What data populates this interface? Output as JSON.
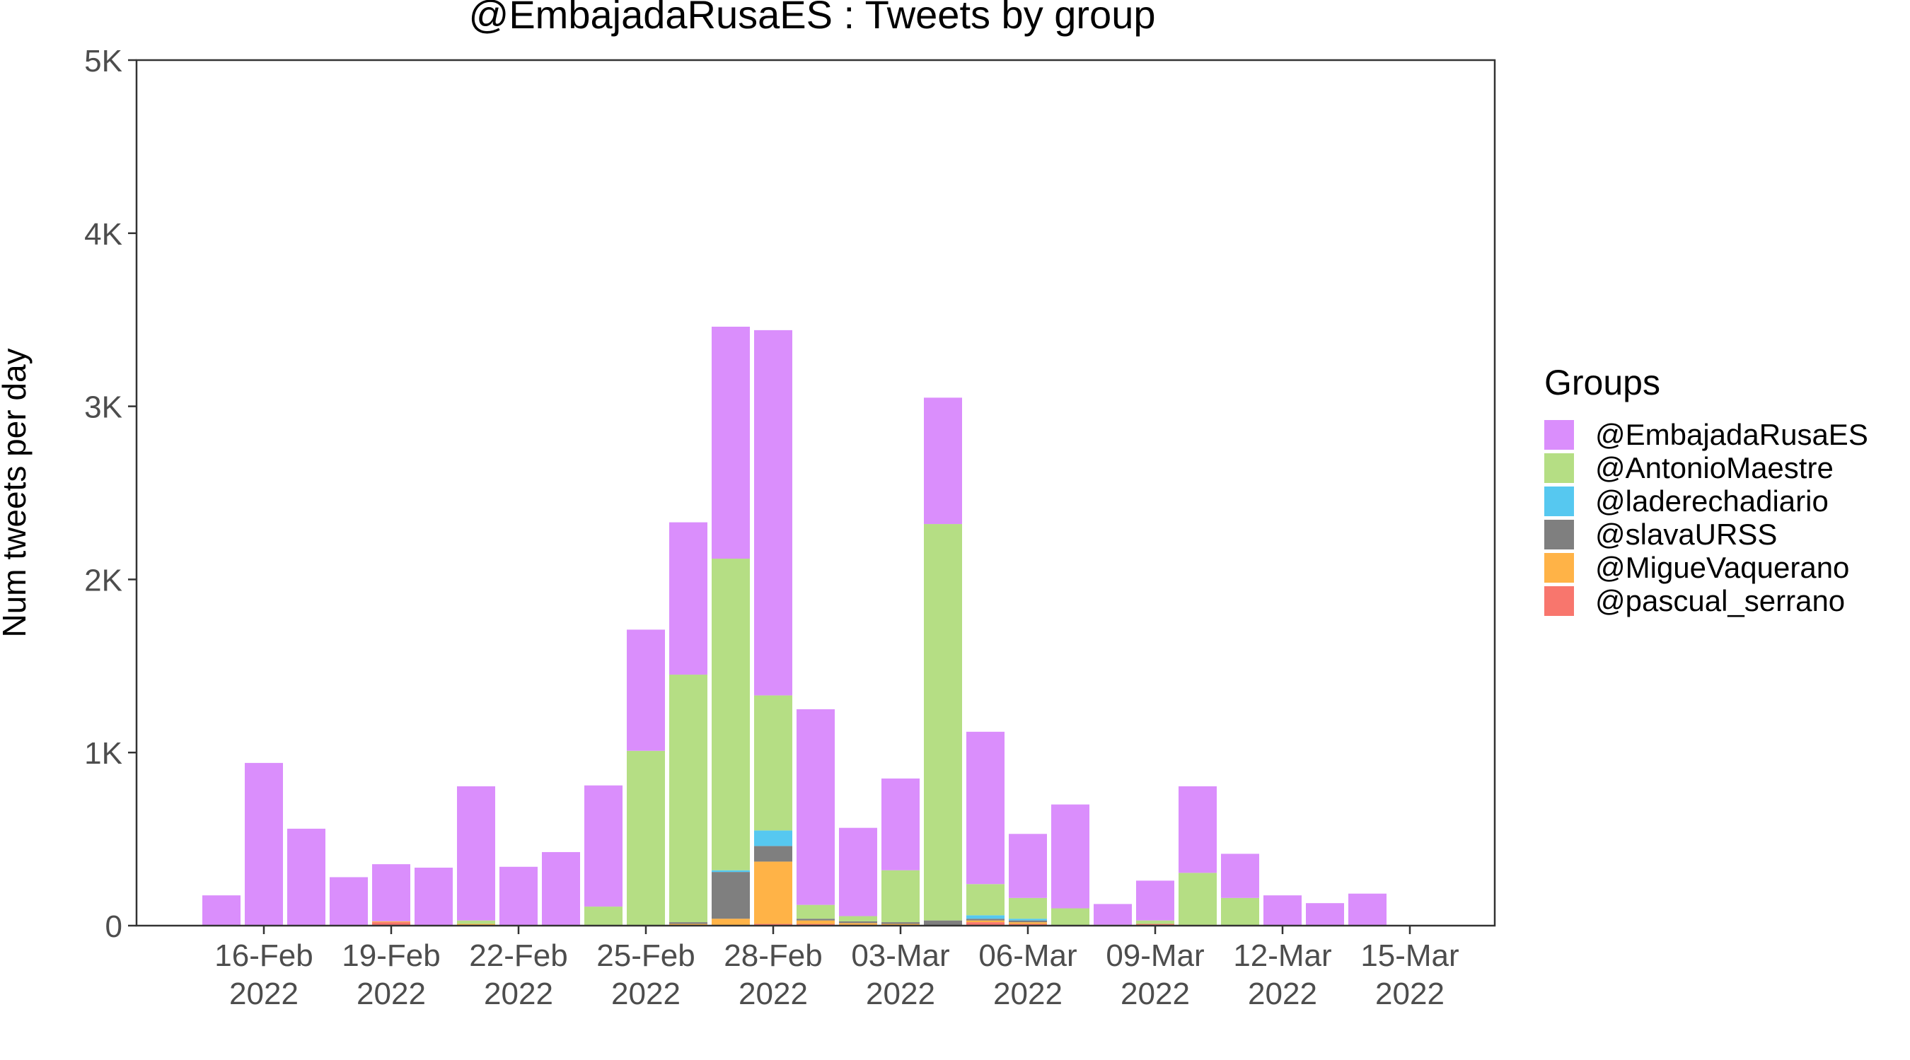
{
  "chart_data": {
    "type": "bar",
    "stacked": true,
    "title": "@EmbajadaRusaES : Tweets by group",
    "ylabel": "Num tweets per day",
    "xlabel": "",
    "ylim": [
      0,
      5000
    ],
    "y_ticks": [
      {
        "value": 0,
        "label": "0"
      },
      {
        "value": 1000,
        "label": "1K"
      },
      {
        "value": 2000,
        "label": "2K"
      },
      {
        "value": 3000,
        "label": "3K"
      },
      {
        "value": 4000,
        "label": "4K"
      },
      {
        "value": 5000,
        "label": "5K"
      }
    ],
    "x_ticks": [
      {
        "date": "2022-02-16",
        "line1": "16-Feb",
        "line2": "2022"
      },
      {
        "date": "2022-02-19",
        "line1": "19-Feb",
        "line2": "2022"
      },
      {
        "date": "2022-02-22",
        "line1": "22-Feb",
        "line2": "2022"
      },
      {
        "date": "2022-02-25",
        "line1": "25-Feb",
        "line2": "2022"
      },
      {
        "date": "2022-02-28",
        "line1": "28-Feb",
        "line2": "2022"
      },
      {
        "date": "2022-03-03",
        "line1": "03-Mar",
        "line2": "2022"
      },
      {
        "date": "2022-03-06",
        "line1": "06-Mar",
        "line2": "2022"
      },
      {
        "date": "2022-03-09",
        "line1": "09-Mar",
        "line2": "2022"
      },
      {
        "date": "2022-03-12",
        "line1": "12-Mar",
        "line2": "2022"
      },
      {
        "date": "2022-03-15",
        "line1": "15-Mar",
        "line2": "2022"
      }
    ],
    "xlim": [
      "2022-02-13",
      "2022-03-17"
    ],
    "grid": false,
    "legend": {
      "title": "Groups",
      "position": "right"
    },
    "dates": [
      "2022-02-15",
      "2022-02-16",
      "2022-02-17",
      "2022-02-18",
      "2022-02-19",
      "2022-02-20",
      "2022-02-21",
      "2022-02-22",
      "2022-02-23",
      "2022-02-24",
      "2022-02-25",
      "2022-02-26",
      "2022-02-27",
      "2022-02-28",
      "2022-03-01",
      "2022-03-02",
      "2022-03-03",
      "2022-03-04",
      "2022-03-05",
      "2022-03-06",
      "2022-03-07",
      "2022-03-08",
      "2022-03-09",
      "2022-03-10",
      "2022-03-11",
      "2022-03-12",
      "2022-03-13",
      "2022-03-14"
    ],
    "series": [
      {
        "name": "@pascual_serrano",
        "color": "#F8766D",
        "values": [
          0,
          0,
          0,
          0,
          20,
          0,
          0,
          0,
          0,
          0,
          0,
          0,
          0,
          10,
          10,
          5,
          0,
          0,
          20,
          10,
          0,
          0,
          10,
          0,
          0,
          0,
          0,
          0
        ]
      },
      {
        "name": "@MigueVaquerano",
        "color": "#FFB347",
        "values": [
          0,
          0,
          0,
          0,
          5,
          0,
          10,
          0,
          0,
          0,
          0,
          10,
          40,
          360,
          20,
          10,
          10,
          0,
          10,
          10,
          0,
          0,
          0,
          5,
          0,
          0,
          0,
          0
        ]
      },
      {
        "name": "@slavaURSS",
        "color": "#7F7F7F",
        "values": [
          0,
          0,
          0,
          0,
          0,
          0,
          0,
          0,
          0,
          0,
          0,
          10,
          270,
          90,
          10,
          10,
          10,
          30,
          10,
          10,
          0,
          0,
          0,
          0,
          0,
          0,
          0,
          0
        ]
      },
      {
        "name": "@laderechadiario",
        "color": "#56C8F0",
        "values": [
          0,
          0,
          0,
          0,
          0,
          0,
          0,
          0,
          0,
          0,
          0,
          0,
          10,
          90,
          0,
          0,
          0,
          0,
          20,
          10,
          0,
          0,
          0,
          0,
          0,
          0,
          0,
          0
        ]
      },
      {
        "name": "@AntonioMaestre",
        "color": "#B5DE84",
        "values": [
          0,
          0,
          0,
          0,
          0,
          0,
          20,
          0,
          0,
          110,
          1010,
          1430,
          1800,
          780,
          80,
          30,
          300,
          2290,
          180,
          120,
          100,
          5,
          20,
          300,
          160,
          0,
          0,
          0
        ]
      },
      {
        "name": "@EmbajadaRusaES",
        "color": "#DA8EFC",
        "values": [
          175,
          940,
          560,
          280,
          330,
          335,
          775,
          340,
          425,
          700,
          700,
          880,
          1340,
          2110,
          1130,
          510,
          530,
          730,
          880,
          370,
          600,
          120,
          230,
          500,
          255,
          175,
          130,
          185
        ]
      }
    ]
  }
}
